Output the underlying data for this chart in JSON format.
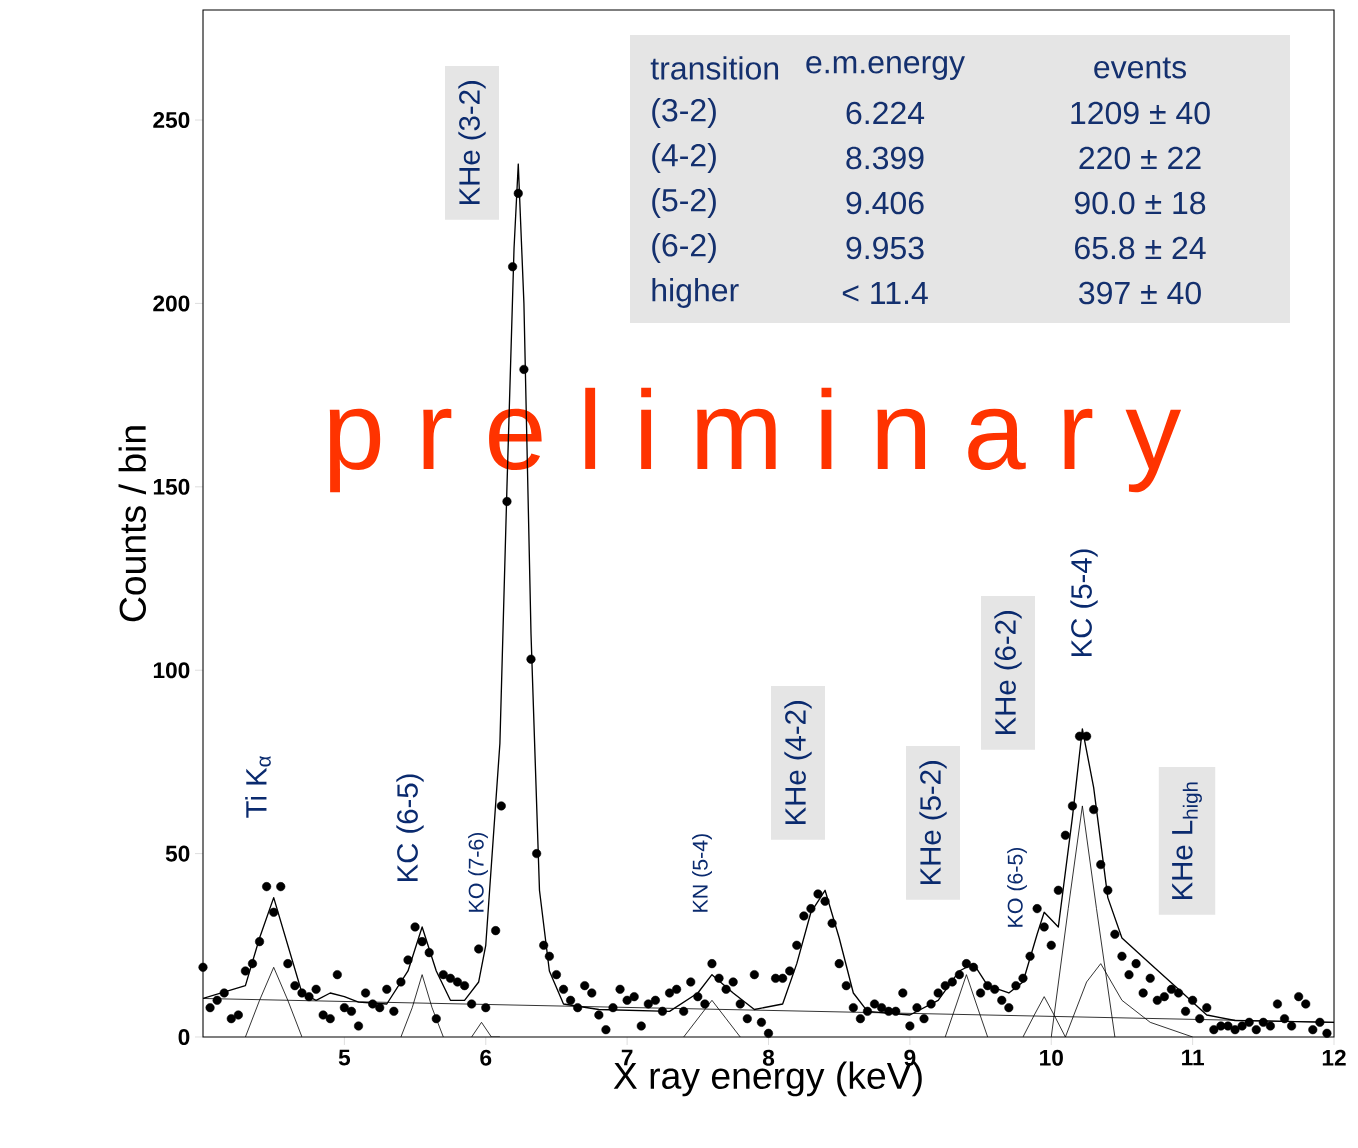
{
  "chart_data": {
    "type": "scatter",
    "xlabel": "X ray energy (keV)",
    "ylabel": "Counts / bin",
    "xlim": [
      4,
      12
    ],
    "ylim": [
      0,
      280
    ],
    "xticks": [
      5,
      6,
      7,
      8,
      9,
      10,
      11,
      12
    ],
    "yticks": [
      0,
      50,
      100,
      150,
      200,
      250
    ],
    "grid": false,
    "series": [
      {
        "color": "#000000",
        "marker": "circle",
        "x": [
          4.0,
          4.05,
          4.1,
          4.15,
          4.2,
          4.25,
          4.3,
          4.35,
          4.4,
          4.45,
          4.5,
          4.55,
          4.6,
          4.65,
          4.7,
          4.75,
          4.8,
          4.85,
          4.9,
          4.95,
          5.0,
          5.05,
          5.1,
          5.15,
          5.2,
          5.25,
          5.3,
          5.35,
          5.4,
          5.45,
          5.5,
          5.55,
          5.6,
          5.65,
          5.7,
          5.75,
          5.8,
          5.85,
          5.9,
          5.95,
          6.0,
          6.07,
          6.11,
          6.15,
          6.19,
          6.23,
          6.27,
          6.32,
          6.36,
          6.41,
          6.45,
          6.5,
          6.55,
          6.6,
          6.65,
          6.7,
          6.75,
          6.8,
          6.85,
          6.9,
          6.95,
          7.0,
          7.05,
          7.1,
          7.15,
          7.2,
          7.25,
          7.3,
          7.35,
          7.4,
          7.45,
          7.5,
          7.55,
          7.6,
          7.65,
          7.7,
          7.75,
          7.8,
          7.85,
          7.9,
          7.95,
          8.0,
          8.05,
          8.1,
          8.15,
          8.2,
          8.25,
          8.3,
          8.35,
          8.4,
          8.45,
          8.5,
          8.55,
          8.6,
          8.65,
          8.7,
          8.75,
          8.8,
          8.85,
          8.9,
          8.95,
          9.0,
          9.05,
          9.1,
          9.15,
          9.2,
          9.25,
          9.3,
          9.35,
          9.4,
          9.45,
          9.5,
          9.55,
          9.6,
          9.65,
          9.7,
          9.75,
          9.8,
          9.85,
          9.9,
          9.95,
          10.0,
          10.05,
          10.1,
          10.15,
          10.2,
          10.25,
          10.3,
          10.35,
          10.4,
          10.45,
          10.5,
          10.55,
          10.6,
          10.65,
          10.7,
          10.75,
          10.8,
          10.85,
          10.9,
          10.95,
          11.0,
          11.05,
          11.1,
          11.15,
          11.2,
          11.25,
          11.3,
          11.35,
          11.4,
          11.45,
          11.5,
          11.55,
          11.6,
          11.65,
          11.7,
          11.75,
          11.8,
          11.85,
          11.9,
          11.95
        ],
        "values": [
          19,
          8,
          10,
          12,
          5,
          6,
          18,
          20,
          26,
          41,
          34,
          41,
          20,
          14,
          12,
          11,
          13,
          6,
          5,
          17,
          8,
          7,
          3,
          12,
          9,
          8,
          13,
          7,
          15,
          21,
          30,
          26,
          23,
          5,
          17,
          16,
          15,
          14,
          9,
          24,
          8,
          29,
          63,
          146,
          210,
          230,
          182,
          103,
          50,
          25,
          22,
          17,
          13,
          10,
          8,
          14,
          12,
          6,
          2,
          8,
          13,
          10,
          11,
          3,
          9,
          10,
          7,
          12,
          13,
          7,
          15,
          11,
          9,
          20,
          16,
          13,
          15,
          9,
          5,
          17,
          4,
          1,
          16,
          16,
          18,
          25,
          33,
          35,
          39,
          37,
          31,
          20,
          14,
          8,
          5,
          7,
          9,
          8,
          7,
          7,
          12,
          3,
          8,
          5,
          9,
          12,
          14,
          15,
          17,
          20,
          19,
          12,
          14,
          13,
          10,
          8,
          14,
          16,
          22,
          35,
          30,
          25,
          40,
          55,
          63,
          82,
          82,
          62,
          47,
          40,
          28,
          22,
          17,
          20,
          12,
          16,
          10,
          11,
          13,
          12,
          7,
          10,
          5,
          8,
          2,
          3,
          3,
          2,
          3,
          4,
          2,
          4,
          3,
          9,
          5,
          3,
          11,
          9,
          2,
          4,
          1
        ]
      },
      {
        "type": "line",
        "color": "#000000",
        "x": [
          4.0,
          4.3,
          4.4,
          4.5,
          4.6,
          4.7,
          4.8,
          4.9,
          5.0,
          5.1,
          5.3,
          5.45,
          5.55,
          5.65,
          5.75,
          5.85,
          5.95,
          6.0,
          6.1,
          6.15,
          6.2,
          6.23,
          6.27,
          6.32,
          6.38,
          6.45,
          6.55,
          6.8,
          7.3,
          7.5,
          7.6,
          7.75,
          7.9,
          8.1,
          8.2,
          8.3,
          8.4,
          8.5,
          8.6,
          8.7,
          9.0,
          9.2,
          9.35,
          9.45,
          9.55,
          9.7,
          9.8,
          9.9,
          9.95,
          10.05,
          10.15,
          10.22,
          10.3,
          10.4,
          10.5,
          10.7,
          10.9,
          11.1,
          11.3,
          12.0
        ],
        "values": [
          10.5,
          14,
          27,
          38,
          25,
          12,
          10,
          12,
          11,
          9.5,
          9,
          18,
          30,
          18,
          10,
          10,
          15,
          25,
          80,
          150,
          215,
          238,
          200,
          110,
          40,
          18,
          9,
          7.5,
          7,
          12,
          17,
          12,
          7.5,
          9,
          20,
          34,
          40,
          27,
          12,
          7,
          6,
          10,
          18,
          20,
          14,
          12,
          15,
          28,
          34,
          30,
          60,
          84,
          68,
          38,
          27,
          20,
          13,
          6,
          4.5,
          4
        ]
      },
      {
        "type": "line",
        "color": "#000000",
        "x": [
          4.0,
          12.0
        ],
        "values": [
          10.5,
          4
        ]
      },
      {
        "type": "line",
        "color": "#000000",
        "x": [
          4.3,
          4.4,
          4.5,
          4.6,
          4.7
        ],
        "values": [
          0,
          10,
          19,
          10,
          0
        ]
      },
      {
        "type": "line",
        "color": "#000000",
        "x": [
          5.4,
          5.48,
          5.55,
          5.62,
          5.7
        ],
        "values": [
          0,
          8,
          17,
          8,
          0
        ]
      },
      {
        "type": "line",
        "color": "#000000",
        "x": [
          5.9,
          5.97,
          6.04,
          6.1
        ],
        "values": [
          0,
          4,
          0,
          0
        ]
      },
      {
        "type": "line",
        "color": "#000000",
        "x": [
          7.4,
          7.5,
          7.6,
          7.7,
          7.8
        ],
        "values": [
          0,
          5,
          10,
          5,
          0
        ]
      },
      {
        "type": "line",
        "color": "#000000",
        "x": [
          9.25,
          9.33,
          9.4,
          9.47,
          9.55
        ],
        "values": [
          0,
          9,
          17,
          9,
          0
        ]
      },
      {
        "type": "line",
        "color": "#000000",
        "x": [
          9.8,
          9.88,
          9.95,
          10.02,
          10.1
        ],
        "values": [
          0,
          6,
          11,
          6,
          0
        ]
      },
      {
        "type": "line",
        "color": "#000000",
        "x": [
          10.0,
          10.12,
          10.22,
          10.32,
          10.45
        ],
        "values": [
          0,
          35,
          63,
          35,
          0
        ]
      },
      {
        "type": "line",
        "color": "#000000",
        "x": [
          10.1,
          10.25,
          10.35,
          10.5,
          10.7,
          11.0
        ],
        "values": [
          0,
          15,
          20,
          10,
          4,
          0
        ]
      }
    ],
    "annotations": [
      "Ti K$_{α}$",
      "KC (6-5)",
      "KO (7-6)",
      "KHe (3-2)",
      "KN (5-4)",
      "KHe (4-2)",
      "KHe (5-2)",
      "KO (6-5)",
      "KHe (6-2)",
      "KC (5-4)",
      "KHe L$_{high}$",
      "transition",
      "e.m.energy",
      "events",
      "(3-2)",
      "6.224",
      "1209 ± 40",
      "(4-2)",
      "8.399",
      "220 ± 22",
      "(5-2)",
      "9.406",
      "90.0 ± 18",
      "(6-2)",
      "9.953",
      "65.8 ± 24",
      "higher",
      "< 11.4",
      "397 ± 40",
      "p r e l i m i n a r y"
    ]
  }
}
